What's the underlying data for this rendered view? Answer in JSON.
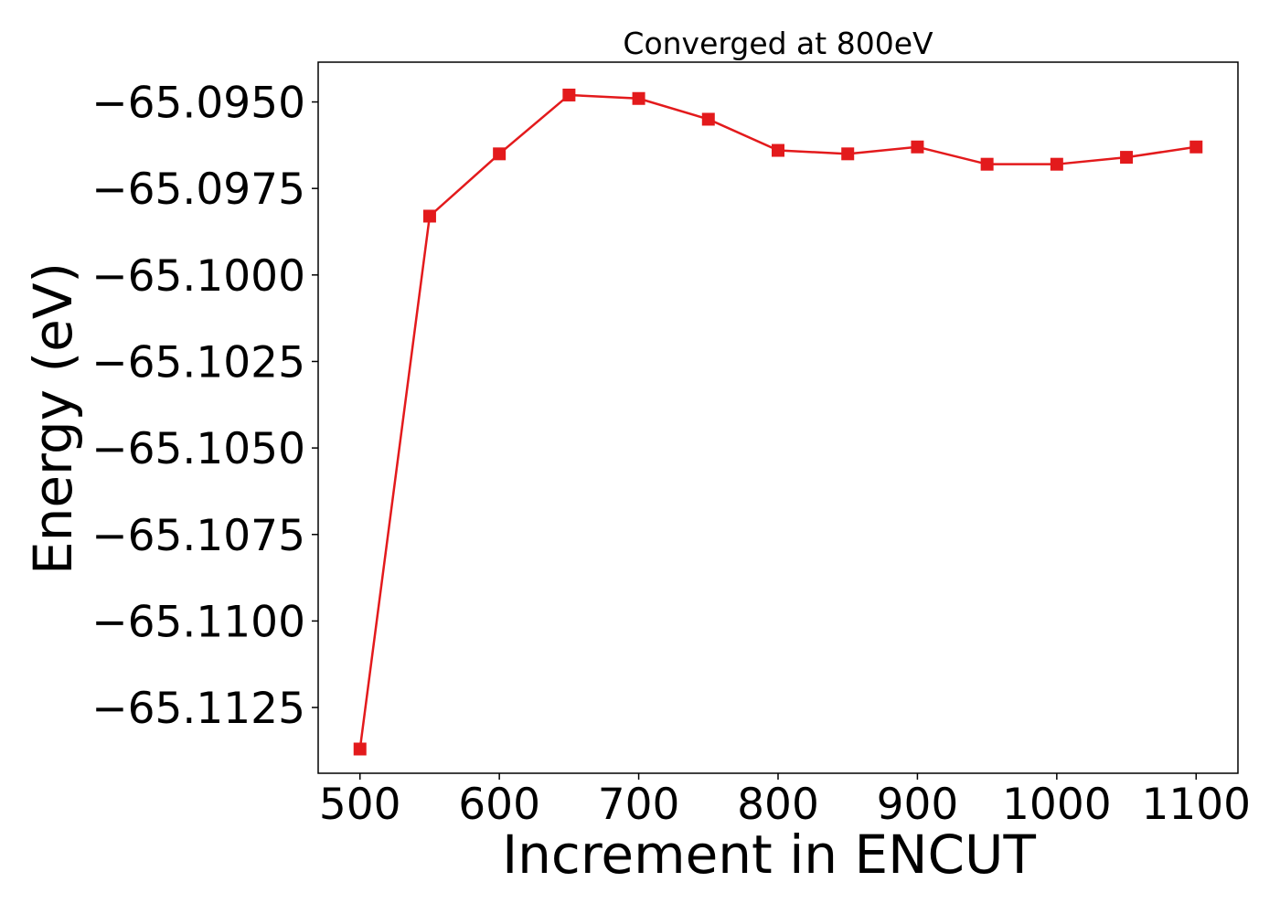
{
  "chart_data": {
    "type": "line",
    "title": "Converged at 800eV",
    "xlabel": "Increment in ENCUT",
    "ylabel": "Energy (eV)",
    "x": [
      500,
      550,
      600,
      650,
      700,
      750,
      800,
      850,
      900,
      950,
      1000,
      1050,
      1100
    ],
    "series": [
      {
        "values": [
          -65.1137,
          -65.0983,
          -65.0965,
          -65.0948,
          -65.0949,
          -65.0955,
          -65.0964,
          -65.0965,
          -65.0963,
          -65.0968,
          -65.0968,
          -65.0966,
          -65.0963
        ],
        "color": "#e31a1c",
        "marker": "square"
      }
    ],
    "xlim": [
      470,
      1130
    ],
    "ylim": [
      -65.1144,
      -65.09385
    ],
    "xticks": [
      500,
      600,
      700,
      800,
      900,
      1000,
      1100
    ],
    "xtick_labels": [
      "500",
      "600",
      "700",
      "800",
      "900",
      "1000",
      "1100"
    ],
    "yticks": [
      -65.095,
      -65.0975,
      -65.1,
      -65.1025,
      -65.105,
      -65.1075,
      -65.11,
      -65.1125
    ],
    "ytick_labels": [
      "−65.0950",
      "−65.0975",
      "−65.1000",
      "−65.1025",
      "−65.1050",
      "−65.1075",
      "−65.1100",
      "−65.1125"
    ],
    "grid": false,
    "legend": false
  }
}
